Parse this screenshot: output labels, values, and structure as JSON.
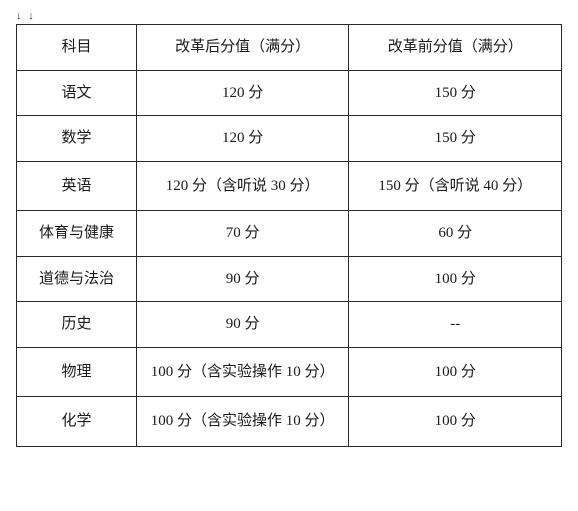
{
  "table": {
    "type": "table",
    "border_color": "#2a2a2a",
    "background_color": "#ffffff",
    "text_color": "#1a1a1a",
    "font_size": 15,
    "columns": [
      {
        "key": "subject",
        "label": "科目",
        "width": "22%"
      },
      {
        "key": "after",
        "label": "改革后分值（满分）",
        "width": "39%"
      },
      {
        "key": "before",
        "label": "改革前分值（满分）",
        "width": "39%"
      }
    ],
    "rows": [
      {
        "subject": "语文",
        "after": "120 分",
        "before": "150 分"
      },
      {
        "subject": "数学",
        "after": "120 分",
        "before": "150 分"
      },
      {
        "subject": "英语",
        "after": "120 分（含听说 30 分）",
        "before": "150 分（含听说 40 分）"
      },
      {
        "subject": "体育与健康",
        "after": "70 分",
        "before": "60 分"
      },
      {
        "subject": "道德与法治",
        "after": "90 分",
        "before": "100 分"
      },
      {
        "subject": "历史",
        "after": "90 分",
        "before": "--"
      },
      {
        "subject": "物理",
        "after": "100 分（含实验操作 10 分）",
        "before": "100 分"
      },
      {
        "subject": "化学",
        "after": "100 分（含实验操作 10 分）",
        "before": "100 分"
      }
    ]
  },
  "top_marks": "↓  ↓"
}
